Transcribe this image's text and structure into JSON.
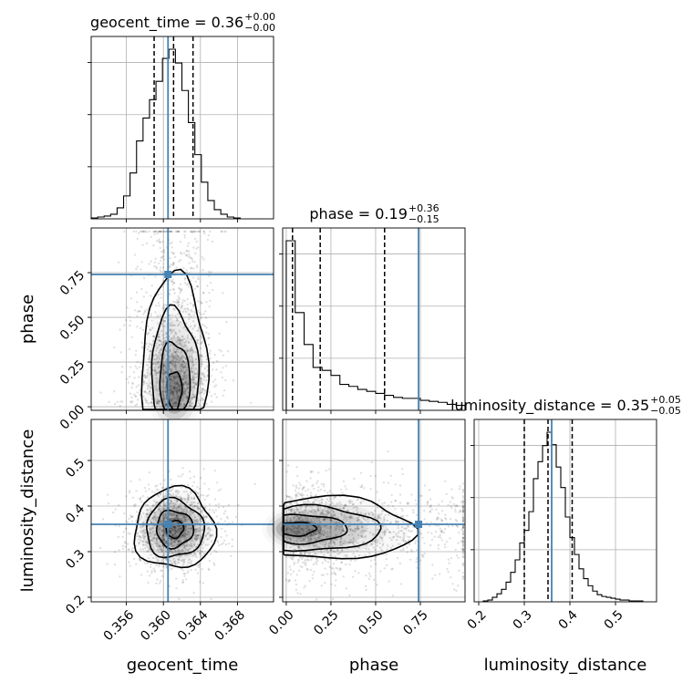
{
  "chart_data": {
    "type": "corner",
    "parameters": [
      "geocent_time",
      "phase",
      "luminosity_distance"
    ],
    "truths": {
      "geocent_time": 0.3605,
      "phase": 0.74,
      "luminosity_distance": 0.36
    },
    "titles": {
      "geocent_time": {
        "prefix": "geocent_time = 0.36",
        "plus": "+0.00",
        "minus": "−0.00"
      },
      "phase": {
        "prefix": "phase = 0.19",
        "plus": "+0.36",
        "minus": "−0.15"
      },
      "luminosity_distance": {
        "prefix": "luminosity_distance = 0.35",
        "plus": "+0.05",
        "minus": "−0.05"
      }
    },
    "axes": {
      "geocent_time": {
        "range": [
          0.3522,
          0.3719
        ],
        "ticks": [
          0.356,
          0.36,
          0.364,
          0.368
        ],
        "tick_labels": [
          "0.356",
          "0.360",
          "0.364",
          "0.368"
        ]
      },
      "phase": {
        "range": [
          -0.02,
          1.0
        ],
        "ticks": [
          0.0,
          0.25,
          0.5,
          0.75
        ],
        "tick_labels": [
          "0.00",
          "0.25",
          "0.50",
          "0.75"
        ]
      },
      "luminosity_distance": {
        "range": [
          0.19,
          0.59
        ],
        "ticks": [
          0.2,
          0.3,
          0.4,
          0.5
        ],
        "tick_labels": [
          "0.2",
          "0.3",
          "0.4",
          "0.5"
        ]
      }
    },
    "marginals": {
      "geocent_time": {
        "quantiles": [
          0.359,
          0.3611,
          0.3632
        ],
        "edges": [
          0.3522,
          0.3529,
          0.3536,
          0.3543,
          0.355,
          0.3557,
          0.3564,
          0.3571,
          0.3578,
          0.3585,
          0.3592,
          0.3599,
          0.3606,
          0.3613,
          0.362,
          0.3627,
          0.3634,
          0.3641,
          0.3648,
          0.3655,
          0.3662,
          0.3669,
          0.3676,
          0.3683
        ],
        "counts": [
          1,
          2,
          3,
          5,
          12,
          25,
          50,
          85,
          110,
          130,
          150,
          175,
          185,
          170,
          140,
          105,
          70,
          40,
          20,
          10,
          5,
          2,
          1
        ]
      },
      "phase": {
        "quantiles": [
          0.035,
          0.19,
          0.55
        ],
        "edges": [
          0.0,
          0.05,
          0.1,
          0.15,
          0.2,
          0.25,
          0.3,
          0.35,
          0.4,
          0.45,
          0.5,
          0.55,
          0.6,
          0.65,
          0.7,
          0.75,
          0.8,
          0.85,
          0.9,
          0.95,
          1.0
        ],
        "counts": [
          170,
          98,
          66,
          43,
          40,
          35,
          26,
          24,
          21,
          19,
          17,
          15,
          13,
          12,
          12,
          10,
          9,
          8,
          6,
          5
        ]
      },
      "luminosity_distance": {
        "quantiles": [
          0.3,
          0.352,
          0.405
        ],
        "edges": [
          0.21,
          0.22,
          0.23,
          0.24,
          0.25,
          0.26,
          0.27,
          0.28,
          0.29,
          0.3,
          0.31,
          0.32,
          0.33,
          0.34,
          0.35,
          0.36,
          0.37,
          0.38,
          0.39,
          0.4,
          0.41,
          0.42,
          0.43,
          0.44,
          0.45,
          0.46,
          0.47,
          0.48,
          0.49,
          0.5,
          0.51,
          0.52,
          0.53,
          0.54,
          0.55,
          0.56
        ],
        "counts": [
          1,
          2,
          5,
          9,
          14,
          22,
          33,
          47,
          66,
          80,
          101,
          138,
          157,
          175,
          190,
          176,
          151,
          128,
          95,
          72,
          53,
          37,
          26,
          18,
          12,
          8,
          6,
          5,
          4,
          3,
          2,
          2,
          1,
          1,
          1
        ]
      }
    },
    "joint": [
      {
        "x": "geocent_time",
        "y": "phase",
        "mode_x": 0.3612,
        "mode_y": 0.05
      },
      {
        "x": "geocent_time",
        "y": "luminosity_distance",
        "mode_x": 0.3612,
        "mode_y": 0.35
      },
      {
        "x": "phase",
        "y": "luminosity_distance",
        "mode_x": 0.01,
        "mode_y": 0.35
      }
    ],
    "truth_color": "#4682b4",
    "grid": true
  }
}
